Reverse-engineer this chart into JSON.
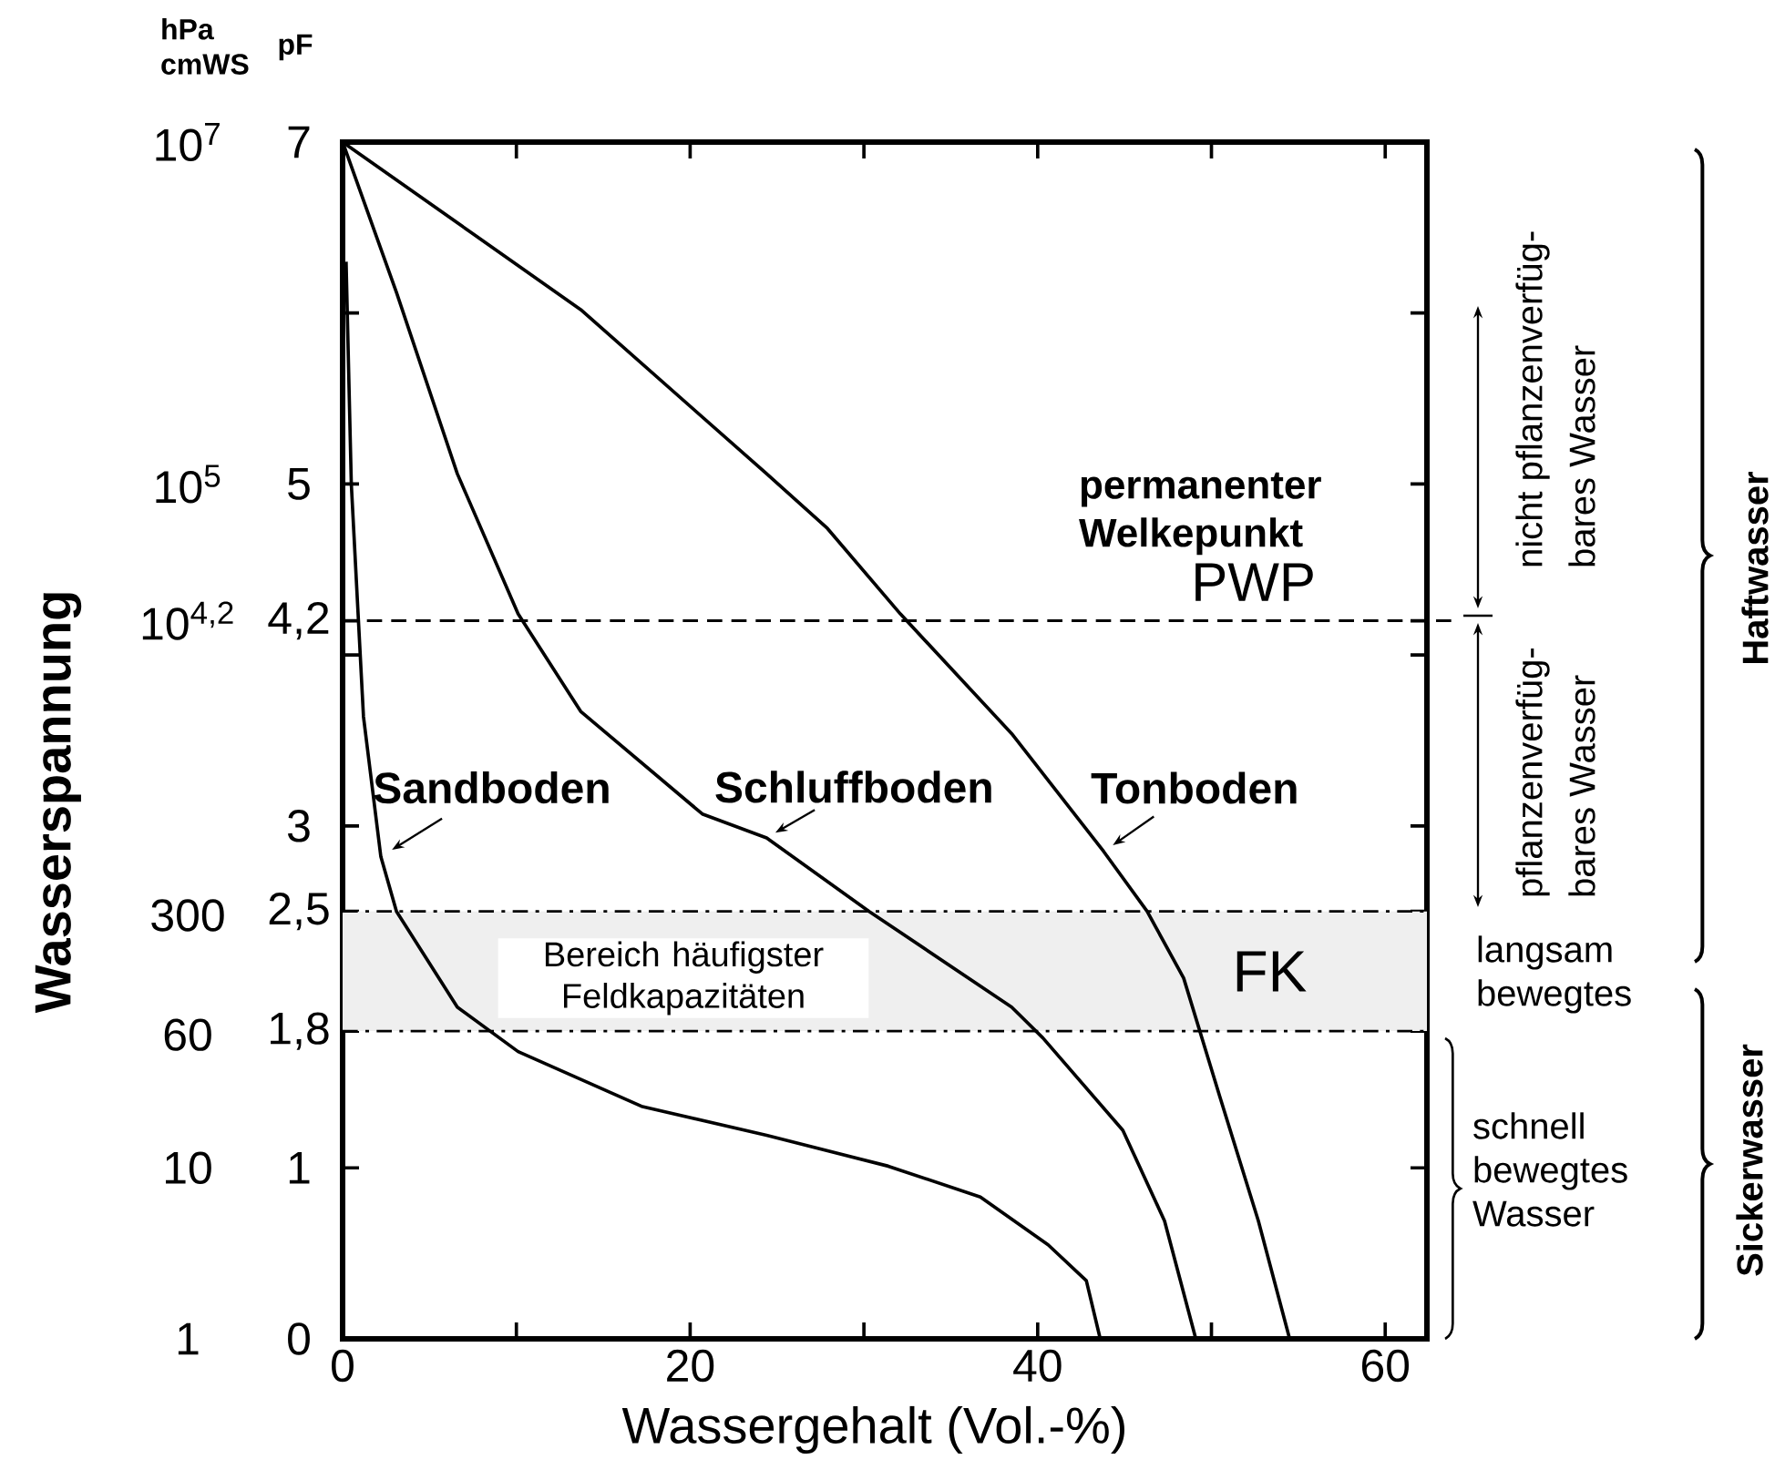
{
  "chart_data": {
    "type": "line",
    "xlabel": "Wassergehalt (Vol.-%)",
    "ylabel": "Wasserspannung",
    "y2label": "pF",
    "xlim": [
      0,
      62.4
    ],
    "ylim": [
      1,
      10000000
    ],
    "y2lim": [
      0,
      7
    ],
    "log": "y",
    "xticks": [
      0,
      {
        "value": 10,
        "label": null
      },
      20,
      {
        "value": 30,
        "label": null
      },
      40,
      {
        "value": 50,
        "label": null
      },
      60
    ],
    "yticks": [
      1,
      10,
      60,
      300,
      {
        "value": 15849,
        "label": "10$^{4,2}$"
      },
      {
        "value": 100000,
        "label": "10$^{5}$"
      },
      {
        "value": 10000000,
        "label": "10$^{7}$"
      }
    ],
    "y2ticks": [
      0,
      1,
      {
        "value": 1.8,
        "label": "1,8"
      },
      {
        "value": 2,
        "label": null
      },
      {
        "value": 2.5,
        "label": "2,5"
      },
      3,
      {
        "value": 4,
        "label": null
      },
      {
        "value": 4.2,
        "label": "4,2"
      },
      5,
      {
        "value": 6,
        "label": null
      },
      7
    ],
    "series": [
      {
        "name": "Sandboden",
        "color": "#000000",
        "axis": "y2",
        "x": [
          0.2,
          0.5,
          1.2,
          2.2,
          3.1,
          6.6,
          10.1,
          17.2,
          24.4,
          31.4,
          36.7,
          40.6,
          42.8,
          43.6
        ],
        "values": [
          6.3,
          5.0,
          3.64,
          2.82,
          2.5,
          1.94,
          1.68,
          1.36,
          1.19,
          1.01,
          0.83,
          0.55,
          0.34,
          0
        ]
      },
      {
        "name": "Schluffboden",
        "color": "#000000",
        "axis": "y2",
        "x": [
          0,
          3.1,
          6.6,
          10.1,
          13.7,
          20.7,
          24.4,
          30.3,
          38.5,
          40.3,
          44.9,
          47.3,
          49.1
        ],
        "values": [
          7,
          6.12,
          5.06,
          4.24,
          3.67,
          3.07,
          2.93,
          2.5,
          1.94,
          1.76,
          1.22,
          0.69,
          0
        ]
      },
      {
        "name": "Tonboden",
        "color": "#000000",
        "axis": "y2",
        "x": [
          0,
          13.7,
          24.4,
          27.9,
          32.1,
          38.5,
          43.8,
          46.3,
          48.4,
          50.5,
          52.7,
          54.5
        ],
        "values": [
          7,
          6.02,
          5.06,
          4.74,
          4.24,
          3.54,
          2.85,
          2.5,
          2.11,
          1.41,
          0.69,
          0
        ]
      }
    ],
    "ref_lines": [
      {
        "axis": "y2",
        "value": 4.2,
        "label": "PWP",
        "line_style": "dashed"
      }
    ],
    "bands": [
      {
        "axis": "y2",
        "from": 1.8,
        "to": 2.5,
        "label": "FK",
        "color": "#efefef"
      }
    ],
    "annotations": [
      "permanenter Welkepunkt",
      "Bereich häufigster Feldkapazitäten",
      "nicht pflanzenverfüg-",
      "bares Wasser",
      "pflanzenverfüg-",
      "bares Wasser",
      "langsam bewegtes",
      "schnell bewegtes Wasser",
      "Haftwasser",
      "Sickerwasser",
      "hPa cmWS"
    ]
  }
}
